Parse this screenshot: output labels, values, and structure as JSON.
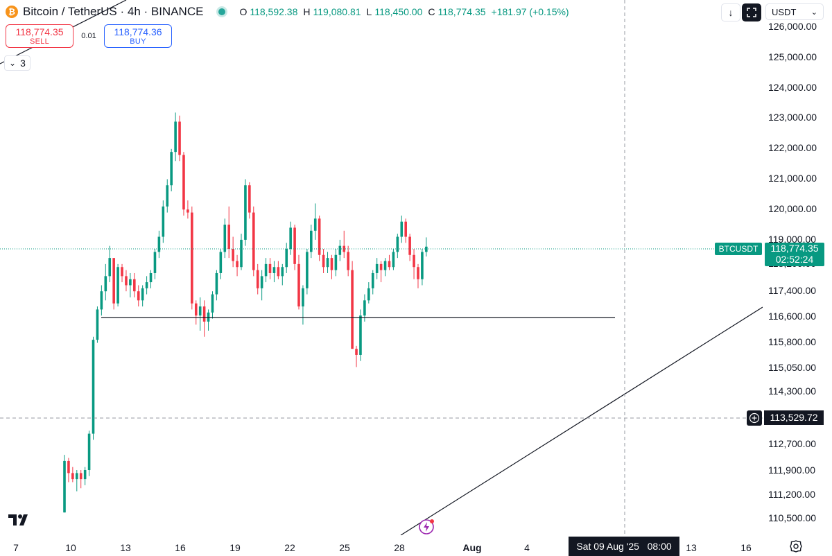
{
  "header": {
    "title": "Bitcoin / TetherUS · 4h · BINANCE",
    "coin_glyph": "₿",
    "ohlc": [
      {
        "key": "O",
        "value": "118,592.38"
      },
      {
        "key": "H",
        "value": "119,080.81"
      },
      {
        "key": "L",
        "value": "118,450.00"
      },
      {
        "key": "C",
        "value": "118,774.35"
      }
    ],
    "change": "+181.97 (+0.15%)",
    "status_color": "#26a69a"
  },
  "trade": {
    "sell_price": "118,774.35",
    "sell_label": "SELL",
    "spread": "0.01",
    "buy_price": "118,774.36",
    "buy_label": "BUY"
  },
  "indicators": {
    "collapse_glyph": "⌄",
    "count": "3"
  },
  "toolbar": {
    "currency": "USDT",
    "currency_glyph": "⌄",
    "down_glyph": "↓"
  },
  "price_scale": {
    "ticks": [
      "126,000.00",
      "125,000.00",
      "124,000.00",
      "123,000.00",
      "122,000.00",
      "121,000.00",
      "120,000.00",
      "119,000.00",
      "118,200.00",
      "117,400.00",
      "116,600.00",
      "115,800.00",
      "115,050.00",
      "114,300.00",
      "113,529.72",
      "112,700.00",
      "111,900.00",
      "111,200.00",
      "110,500.00"
    ],
    "current_price": "118,774.35",
    "countdown": "02:52:24",
    "symbol_badge": "BTCUSDT",
    "crosshair_price": "113,529.72"
  },
  "time_scale": {
    "labels": [
      {
        "text": "7",
        "bold": false
      },
      {
        "text": "10",
        "bold": false
      },
      {
        "text": "13",
        "bold": false
      },
      {
        "text": "16",
        "bold": false
      },
      {
        "text": "19",
        "bold": false
      },
      {
        "text": "22",
        "bold": false
      },
      {
        "text": "25",
        "bold": false
      },
      {
        "text": "28",
        "bold": false
      },
      {
        "text": "Aug",
        "bold": true
      },
      {
        "text": "4",
        "bold": false
      },
      {
        "text": "13",
        "bold": false
      },
      {
        "text": "16",
        "bold": false
      }
    ],
    "crosshair_date": "Sat 09 Aug '25   08:00"
  },
  "colors": {
    "up": "#089981",
    "down": "#f23645",
    "crosshair": "#9598a1",
    "drawing": "#131722"
  },
  "icons": [
    "bitcoin-icon",
    "status-dot",
    "arrow-down-icon",
    "fullscreen-icon",
    "chevron-down-icon",
    "plus-icon",
    "flash-icon",
    "settings-icon",
    "tradingview-logo"
  ],
  "chart_data": {
    "type": "candlestick",
    "title": "Bitcoin / TetherUS · 4h · BINANCE",
    "interval": "4h",
    "ylim": [
      110000,
      126400
    ],
    "candle_ohlc": [
      [
        110000,
        111900,
        110000,
        111700
      ],
      [
        111700,
        111800,
        111000,
        111300
      ],
      [
        111300,
        111500,
        111000,
        111100
      ],
      [
        111100,
        111400,
        110700,
        111300
      ],
      [
        111300,
        111400,
        110800,
        111100
      ],
      [
        111100,
        111500,
        110900,
        111400
      ],
      [
        111400,
        112700,
        111200,
        112600
      ],
      [
        112600,
        115800,
        112400,
        115700
      ],
      [
        115700,
        116800,
        115600,
        116700
      ],
      [
        116700,
        117500,
        116500,
        117300
      ],
      [
        117300,
        118200,
        117000,
        117800
      ],
      [
        117800,
        118800,
        117600,
        118400
      ],
      [
        118400,
        118300,
        116700,
        116900
      ],
      [
        116900,
        118200,
        116800,
        118100
      ],
      [
        118100,
        118200,
        117600,
        117800
      ],
      [
        117800,
        118000,
        117300,
        117500
      ],
      [
        117500,
        117900,
        117100,
        117700
      ],
      [
        117700,
        117900,
        117100,
        117300
      ],
      [
        117300,
        117500,
        116800,
        117000
      ],
      [
        117000,
        117500,
        116800,
        117400
      ],
      [
        117400,
        117800,
        117200,
        117600
      ],
      [
        117600,
        118000,
        117400,
        117900
      ],
      [
        117900,
        118700,
        117700,
        118600
      ],
      [
        118600,
        119300,
        118400,
        119100
      ],
      [
        119100,
        120300,
        118900,
        120100
      ],
      [
        120100,
        121000,
        119900,
        120800
      ],
      [
        120800,
        122000,
        120600,
        121900
      ],
      [
        121900,
        123200,
        121600,
        122900
      ],
      [
        122900,
        123100,
        121600,
        121800
      ],
      [
        121800,
        121900,
        119800,
        120000
      ],
      [
        120000,
        120300,
        119700,
        119900
      ],
      [
        119900,
        120100,
        116700,
        116900
      ],
      [
        116900,
        117000,
        116200,
        116500
      ],
      [
        116500,
        117100,
        116000,
        116800
      ],
      [
        116800,
        117000,
        115800,
        116300
      ],
      [
        116300,
        116700,
        116000,
        116600
      ],
      [
        116600,
        117300,
        116400,
        117200
      ],
      [
        117200,
        118000,
        117000,
        117900
      ],
      [
        117900,
        118700,
        117700,
        118600
      ],
      [
        118600,
        119700,
        118400,
        119500
      ],
      [
        119500,
        120100,
        118400,
        118700
      ],
      [
        118700,
        119100,
        118100,
        118300
      ],
      [
        118300,
        118500,
        117800,
        118100
      ],
      [
        118100,
        119200,
        118000,
        119000
      ],
      [
        119000,
        121000,
        118800,
        120800
      ],
      [
        120800,
        120900,
        119700,
        119900
      ],
      [
        119900,
        120100,
        117800,
        118000
      ],
      [
        118000,
        118200,
        117200,
        117400
      ],
      [
        117400,
        118000,
        117000,
        117800
      ],
      [
        117800,
        118400,
        117600,
        118200
      ],
      [
        118200,
        118400,
        117700,
        117900
      ],
      [
        117900,
        118300,
        117600,
        118100
      ],
      [
        118100,
        118300,
        117700,
        117800
      ],
      [
        117800,
        118200,
        117500,
        118100
      ],
      [
        118100,
        118900,
        117900,
        118700
      ],
      [
        118700,
        119600,
        118500,
        119400
      ],
      [
        119400,
        119500,
        118000,
        118200
      ],
      [
        118200,
        118500,
        116700,
        116800
      ],
      [
        116800,
        117500,
        116200,
        117400
      ],
      [
        117400,
        118700,
        117200,
        118600
      ],
      [
        118600,
        119500,
        118400,
        119300
      ],
      [
        119300,
        120200,
        119000,
        119700
      ],
      [
        119700,
        119800,
        118300,
        118500
      ],
      [
        118500,
        118700,
        117900,
        118100
      ],
      [
        118100,
        118600,
        117900,
        118400
      ],
      [
        118400,
        118500,
        117700,
        118000
      ],
      [
        118000,
        118700,
        117800,
        118500
      ],
      [
        118500,
        119000,
        118300,
        118800
      ],
      [
        118800,
        119300,
        118400,
        118600
      ],
      [
        118600,
        118800,
        117800,
        118000
      ],
      [
        118000,
        118300,
        115600,
        115400
      ],
      [
        115400,
        115500,
        114800,
        115200
      ],
      [
        115200,
        116700,
        115000,
        116500
      ],
      [
        116500,
        117200,
        116300,
        117000
      ],
      [
        117000,
        117600,
        116900,
        117400
      ],
      [
        117400,
        118000,
        117200,
        117900
      ],
      [
        117900,
        118400,
        117700,
        118200
      ],
      [
        118200,
        118300,
        117600,
        118000
      ],
      [
        118000,
        118400,
        117800,
        118300
      ],
      [
        118300,
        118500,
        118000,
        118100
      ],
      [
        118100,
        118700,
        118000,
        118600
      ],
      [
        118600,
        119200,
        118400,
        119100
      ],
      [
        119100,
        119800,
        118900,
        119600
      ],
      [
        119600,
        119700,
        118900,
        119100
      ],
      [
        119100,
        119200,
        118300,
        118500
      ],
      [
        118500,
        118700,
        117700,
        118100
      ],
      [
        118100,
        118200,
        117400,
        117700
      ],
      [
        117700,
        118700,
        117500,
        118600
      ],
      [
        118600,
        119080,
        118450,
        118774
      ]
    ],
    "drawings": [
      {
        "type": "horizontal_line",
        "price": 116700
      },
      {
        "type": "trend_line"
      },
      {
        "type": "trend_line"
      }
    ],
    "crosshair": {
      "price": 113529.72,
      "date": "Sat 09 Aug '25 08:00"
    }
  }
}
